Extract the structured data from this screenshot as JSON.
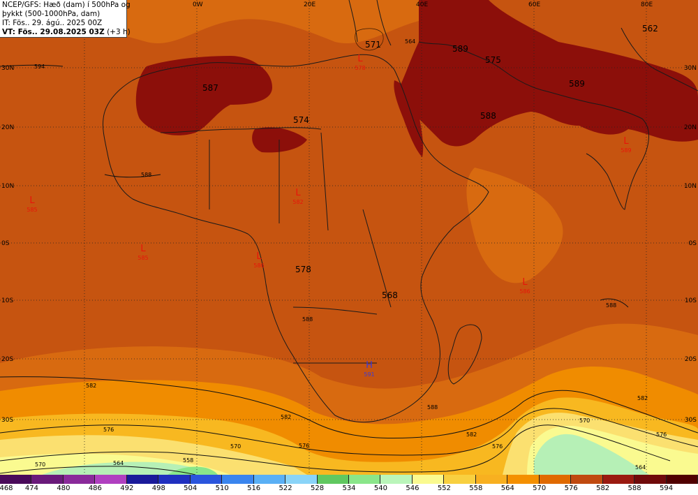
{
  "header": {
    "line1": "NCEP/GFS: Hæð (dam) í 500hPa og",
    "line2": "þykkt (500-1000hPa, dam)",
    "line3": "IT: Fös.. 29. ágú.. 2025 00Z",
    "line4": "VT: Fös.. 29.08.2025 03Z",
    "line4_suffix": "(+3 h)"
  },
  "grid": {
    "lon_labels": [
      "0W",
      "20E",
      "40E",
      "60E",
      "80E"
    ],
    "lat_labels_left": [
      "30N",
      "20N",
      "10N",
      "0S",
      "10S",
      "20S",
      "30S"
    ],
    "lat_labels_right": [
      "30N",
      "20N",
      "10N",
      "0S",
      "10S",
      "20S",
      "30S"
    ]
  },
  "height_labels": [
    "571",
    "589",
    "575",
    "562",
    "587",
    "589",
    "588",
    "574",
    "578",
    "568"
  ],
  "pressure_centers": [
    {
      "type": "L",
      "value": "578"
    },
    {
      "type": "L",
      "value": "585"
    },
    {
      "type": "L",
      "value": "585"
    },
    {
      "type": "L",
      "value": "582"
    },
    {
      "type": "L",
      "value": "586"
    },
    {
      "type": "L",
      "value": "589"
    },
    {
      "type": "L",
      "value": "586"
    },
    {
      "type": "H",
      "value": "591"
    }
  ],
  "thickness_labels": [
    "594",
    "588",
    "588",
    "588",
    "582",
    "582",
    "582",
    "576",
    "576",
    "576",
    "570",
    "570",
    "564",
    "564",
    "558",
    "588",
    "582",
    "576",
    "570",
    "564"
  ],
  "legend": {
    "colors": [
      "#4a0a5a",
      "#6a1a7a",
      "#8a2a9a",
      "#b040c0",
      "#1a1a9a",
      "#2030c0",
      "#2a55dd",
      "#3a85ee",
      "#5ab0f5",
      "#8ad4f8",
      "#60c860",
      "#8ae68a",
      "#baf5ba",
      "#fafa90",
      "#f8d040",
      "#f8b020",
      "#f49000",
      "#e06a00",
      "#c04a10",
      "#9a1a10",
      "#700a0a",
      "#500000"
    ],
    "labels": [
      "468",
      "474",
      "480",
      "486",
      "492",
      "498",
      "504",
      "510",
      "516",
      "522",
      "528",
      "534",
      "540",
      "546",
      "552",
      "558",
      "564",
      "570",
      "576",
      "582",
      "588",
      "594"
    ]
  }
}
